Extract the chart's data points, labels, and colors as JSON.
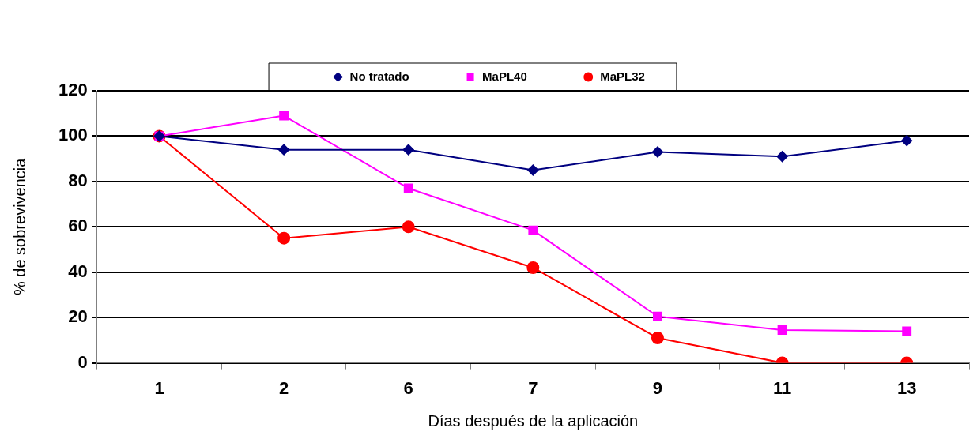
{
  "chart_data": {
    "type": "line",
    "xlabel": "Días después de la aplicación",
    "ylabel": "% de sobrevivencia",
    "categories": [
      "1",
      "2",
      "6",
      "7",
      "9",
      "11",
      "13"
    ],
    "series": [
      {
        "name": "No tratado",
        "color": "#000080",
        "marker": "diamond",
        "values": [
          100,
          94,
          94,
          85,
          93,
          91,
          98
        ]
      },
      {
        "name": "MaPL40",
        "color": "#ff00ff",
        "marker": "square",
        "values": [
          100,
          109,
          77,
          58.5,
          20.5,
          14.5,
          14
        ]
      },
      {
        "name": "MaPL32",
        "color": "#ff0000",
        "marker": "circle",
        "values": [
          100,
          55,
          60,
          42,
          11,
          0,
          0
        ]
      }
    ],
    "ylim": [
      0,
      120
    ],
    "yticks": [
      0,
      20,
      40,
      60,
      80,
      100,
      120
    ],
    "grid": "y",
    "legend": "top",
    "line_style": "solid"
  }
}
